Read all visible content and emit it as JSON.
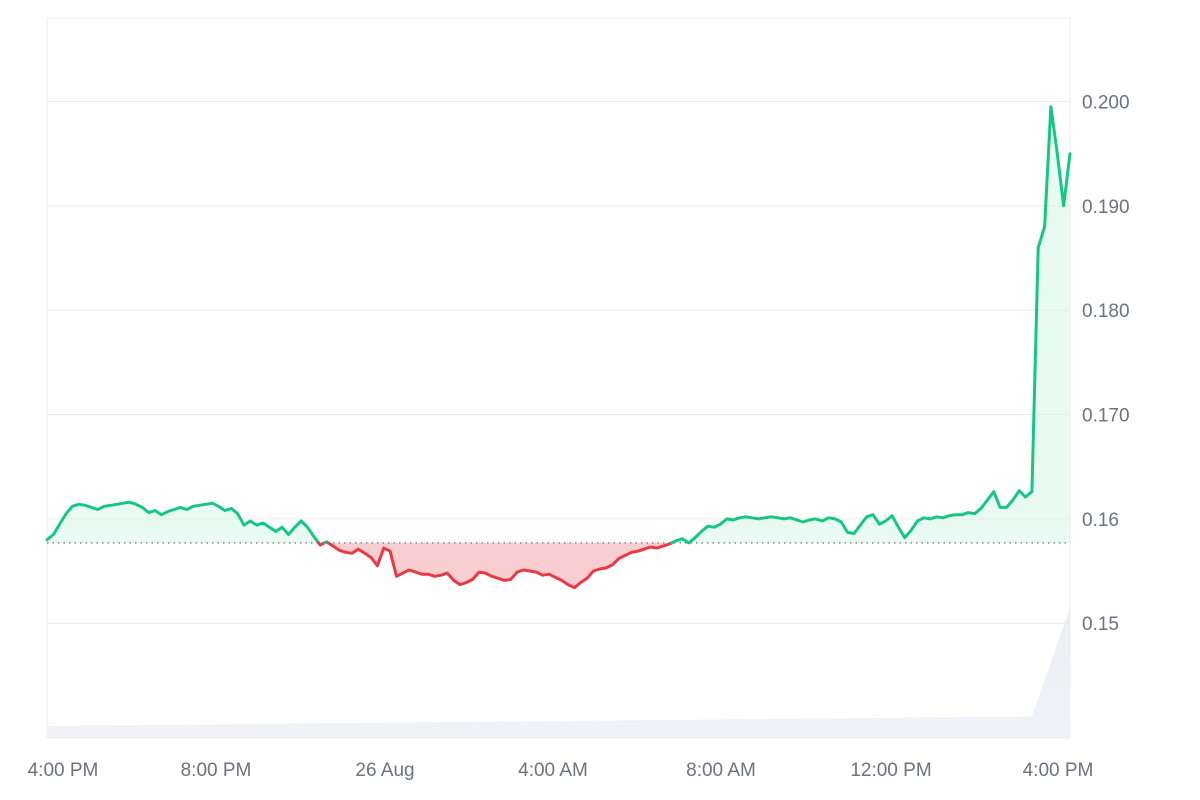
{
  "chart_data": {
    "type": "area",
    "title": "",
    "xlabel": "",
    "ylabel": "",
    "baseline": 0.1577,
    "ylim": [
      0.139,
      0.208
    ],
    "y_ticks": [
      0.15,
      0.16,
      0.17,
      0.18,
      0.19,
      0.2
    ],
    "y_tick_labels": [
      "0.15",
      "0.16",
      "0.170",
      "0.180",
      "0.190",
      "0.200"
    ],
    "x_ticks": [
      "4:00 PM",
      "8:00 PM",
      "26 Aug",
      "4:00 AM",
      "8:00 AM",
      "12:00 PM",
      "4:00 PM"
    ],
    "grid": true,
    "legend": "none",
    "colors": {
      "up": "#16c784",
      "down": "#ea3943",
      "up_fill": "#d6f6e8",
      "down_fill": "#f8c9cc",
      "grid": "#e9ecef",
      "baseline": "#6b7280",
      "volume": "#e3e8ee"
    },
    "series": [
      {
        "values": [
          0.158,
          0.1585,
          0.1595,
          0.1605,
          0.1612,
          0.1614,
          0.1613,
          0.1611,
          0.1609,
          0.1612,
          0.1613,
          0.1614,
          0.1615,
          0.1616,
          0.1614,
          0.1611,
          0.1606,
          0.1608,
          0.1604,
          0.1607,
          0.1609,
          0.1611,
          0.1609,
          0.1612,
          0.1613,
          0.1614,
          0.1615,
          0.1612,
          0.1608,
          0.161,
          0.1605,
          0.1594,
          0.1598,
          0.1594,
          0.1596,
          0.1592,
          0.1588,
          0.1592,
          0.1585,
          0.1592,
          0.1598,
          0.1592,
          0.1583,
          0.1575,
          0.1578,
          0.1574,
          0.157,
          0.1568,
          0.1567,
          0.1571,
          0.1567,
          0.1563,
          0.1555,
          0.1572,
          0.1569,
          0.1545,
          0.1548,
          0.1551,
          0.1549,
          0.1547,
          0.1547,
          0.1545,
          0.1546,
          0.1548,
          0.1541,
          0.1537,
          0.1539,
          0.1542,
          0.1549,
          0.1548,
          0.1545,
          0.1543,
          0.1541,
          0.1542,
          0.1549,
          0.1551,
          0.155,
          0.1549,
          0.1546,
          0.1547,
          0.1544,
          0.1541,
          0.1537,
          0.1534,
          0.1539,
          0.1543,
          0.155,
          0.1552,
          0.1553,
          0.1556,
          0.1562,
          0.1565,
          0.1568,
          0.1569,
          0.1571,
          0.1573,
          0.1572,
          0.1574,
          0.1576,
          0.1579,
          0.1581,
          0.1577,
          0.1582,
          0.1588,
          0.1593,
          0.1592,
          0.1595,
          0.16,
          0.1599,
          0.1601,
          0.1602,
          0.1601,
          0.16,
          0.1601,
          0.1602,
          0.1601,
          0.16,
          0.1601,
          0.1599,
          0.1597,
          0.1599,
          0.16,
          0.1598,
          0.1601,
          0.16,
          0.1597,
          0.1587,
          0.1586,
          0.1594,
          0.1602,
          0.1604,
          0.1595,
          0.1598,
          0.1603,
          0.1592,
          0.1582,
          0.1589,
          0.1598,
          0.1601,
          0.16,
          0.1602,
          0.1601,
          0.1603,
          0.1604,
          0.1604,
          0.1606,
          0.1605,
          0.161,
          0.1618,
          0.1626,
          0.1611,
          0.1611,
          0.1618,
          0.1627,
          0.1621,
          0.1626,
          0.186,
          0.188,
          0.1995,
          0.195,
          0.19,
          0.195
        ]
      }
    ]
  }
}
